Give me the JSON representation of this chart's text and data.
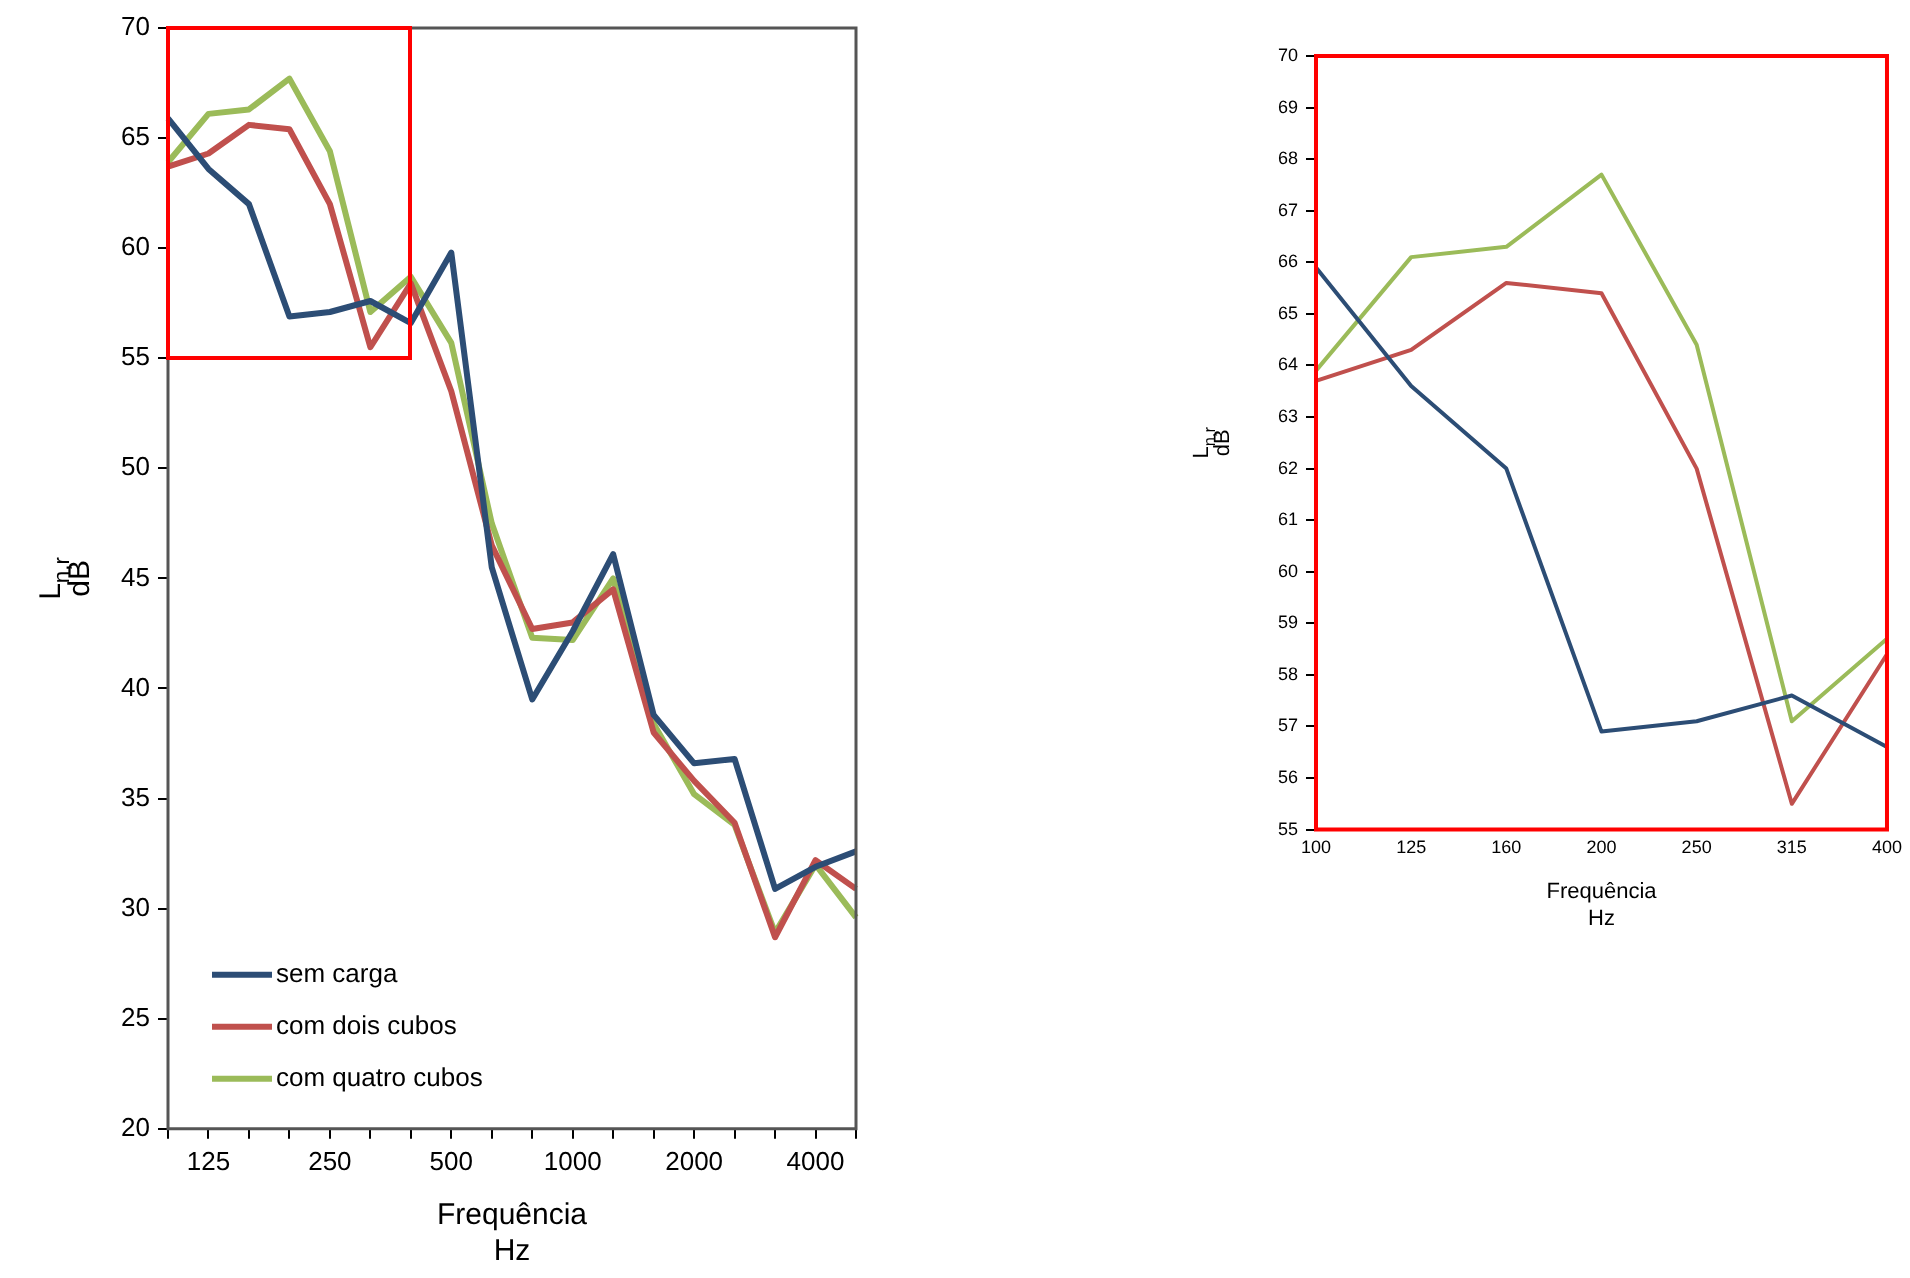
{
  "chart_data": [
    {
      "type": "line",
      "xlabel": "Frequência\nHz",
      "ylabel": "L$_{n,r}$\ndB",
      "categories": [
        null,
        "125",
        null,
        null,
        "250",
        null,
        null,
        "500",
        null,
        null,
        "1000",
        null,
        null,
        "2000",
        null,
        null,
        "4000",
        null
      ],
      "series": [
        {
          "name": "sem carga",
          "color": "#2c4d75",
          "values": [
            65.9,
            63.6,
            62.0,
            56.9,
            57.1,
            57.6,
            56.6,
            59.8,
            45.5,
            39.5,
            42.6,
            46.1,
            38.8,
            36.6,
            36.8,
            30.9,
            31.9,
            32.6
          ]
        },
        {
          "name": "com dois cubos",
          "color": "#c0504d",
          "values": [
            63.7,
            64.3,
            65.6,
            65.4,
            62.0,
            55.5,
            58.4,
            53.5,
            46.5,
            42.7,
            43.0,
            44.5,
            38.0,
            35.8,
            33.9,
            28.7,
            32.2,
            30.9
          ]
        },
        {
          "name": "com quatro cubos",
          "color": "#9bbb59",
          "values": [
            63.9,
            66.1,
            66.3,
            67.7,
            64.4,
            57.1,
            58.7,
            55.7,
            47.5,
            42.3,
            42.2,
            45.0,
            38.4,
            35.2,
            33.8,
            28.9,
            32.0,
            29.6
          ]
        }
      ],
      "ylim": [
        20,
        70
      ],
      "yticks": [
        20,
        25,
        30,
        35,
        40,
        45,
        50,
        55,
        60,
        65,
        70
      ],
      "grid": false,
      "legend": "bottom left",
      "marker": "none",
      "line_style": "solid"
    },
    {
      "type": "line",
      "xlabel": "Frequência\nHz",
      "ylabel": "L$_{n,r}$\ndB",
      "categories": [
        "100",
        "125",
        "160",
        "200",
        "250",
        "315",
        "400"
      ],
      "series": [
        {
          "color": "#2c4d75",
          "values": [
            65.9,
            63.6,
            62.0,
            56.9,
            57.1,
            57.6,
            56.6
          ]
        },
        {
          "color": "#c0504d",
          "values": [
            63.7,
            64.3,
            65.6,
            65.4,
            62.0,
            55.5,
            58.4
          ]
        },
        {
          "color": "#9bbb59",
          "values": [
            63.9,
            66.1,
            66.3,
            67.7,
            64.4,
            57.1,
            58.7
          ]
        }
      ],
      "ylim": [
        55,
        70
      ],
      "yticks": [
        55,
        56,
        57,
        58,
        59,
        60,
        61,
        62,
        63,
        64,
        65,
        66,
        67,
        68,
        69,
        70
      ],
      "grid": false,
      "legend": false,
      "marker": "none",
      "line_style": "solid"
    }
  ]
}
